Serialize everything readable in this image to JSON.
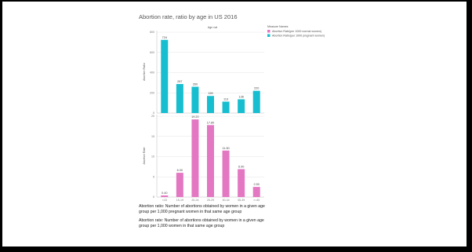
{
  "page_title": "Abortion rate, ratio by age in US 2016",
  "column_header": "Age cat",
  "legend": {
    "title": "Measure Names",
    "items": [
      {
        "label": "Abortion Rate(per 1000 normal women)",
        "color": "#e377c2"
      },
      {
        "label": "Abortion Ratio(per 1000 pregnant women)",
        "color": "#17becf"
      }
    ]
  },
  "notes": [
    "Abortion ratio: Number of abortions obtained by women in a given age",
    "group per 1,000 pregnant women in that same age group",
    "Abortion rate: Number of abortions obtained by women in a given age",
    "group per 1,000 women in that same age group"
  ],
  "chart_data": [
    {
      "type": "bar",
      "categories": [
        "<15",
        "15-19",
        "20-24",
        "25-29",
        "30-34",
        "35-39",
        ">=40"
      ],
      "values": [
        724,
        287,
        260,
        169,
        113,
        136,
        220
      ],
      "value_labels": [
        "724",
        "287",
        "260",
        "169",
        "113",
        "136",
        "220"
      ],
      "ylabel": "Abortion Ratio",
      "yticks": [
        "0",
        "200",
        "400",
        "600",
        "800"
      ],
      "ylim": [
        0,
        800
      ],
      "color": "#17becf"
    },
    {
      "type": "bar",
      "categories": [
        "<15",
        "15-19",
        "20-24",
        "25-29",
        "30-34",
        "35-39",
        ">=40"
      ],
      "values": [
        0.4,
        6.0,
        19.2,
        17.8,
        11.5,
        6.9,
        2.5
      ],
      "value_labels": [
        "0.40",
        "6.00",
        "19.20",
        "17.80",
        "11.50",
        "6.90",
        "2.50"
      ],
      "ylabel": "Abortion Rate",
      "yticks": [
        "0",
        "5",
        "10",
        "15",
        "20"
      ],
      "ylim": [
        0,
        20
      ],
      "color": "#e377c2"
    }
  ]
}
